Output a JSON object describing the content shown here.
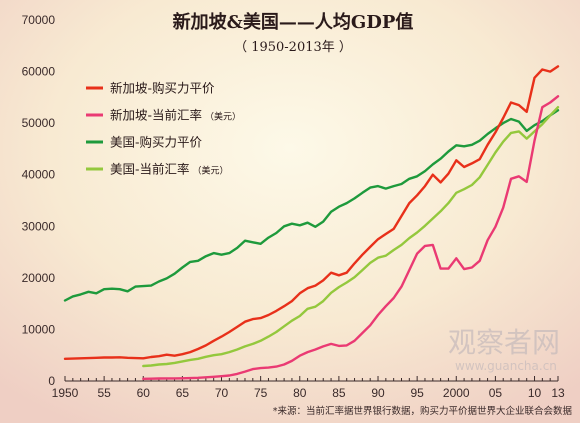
{
  "title": "新加坡&美国——人均GDP值",
  "subtitle": "（ 1950-2013年 ）",
  "source": "*来源：当前汇率据世界银行数据，购买力平价据世界大企业联合会数据",
  "watermark": {
    "logo_text": "观察者网",
    "url": "www.guancha.cn"
  },
  "colors": {
    "sg_ppp": "#e8301a",
    "sg_cur": "#ea3a73",
    "us_ppp": "#1e9a3c",
    "us_cur": "#94c83d"
  },
  "chart_data": {
    "type": "line",
    "title": "新加坡&美国——人均GDP值",
    "subtitle": "（ 1950-2013年 ）",
    "xlabel": "",
    "ylabel": "",
    "xlim": [
      1950,
      2013
    ],
    "ylim": [
      0,
      70000
    ],
    "x_tick_labels": [
      {
        "x": 1950,
        "label": "1950"
      },
      {
        "x": 1955,
        "label": "55"
      },
      {
        "x": 1960,
        "label": "60"
      },
      {
        "x": 1965,
        "label": "65"
      },
      {
        "x": 1970,
        "label": "70"
      },
      {
        "x": 1975,
        "label": "75"
      },
      {
        "x": 1980,
        "label": "80"
      },
      {
        "x": 1985,
        "label": "85"
      },
      {
        "x": 1990,
        "label": "90"
      },
      {
        "x": 1995,
        "label": "95"
      },
      {
        "x": 2000,
        "label": "2000"
      },
      {
        "x": 2005,
        "label": "05"
      },
      {
        "x": 2010,
        "label": "10"
      },
      {
        "x": 2013,
        "label": "13"
      }
    ],
    "y_ticks": [
      0,
      10000,
      20000,
      30000,
      40000,
      50000,
      60000,
      70000
    ],
    "grid": false,
    "legend_position": "top-left",
    "series": [
      {
        "name": "新加坡-购买力平价",
        "color_key": "sg_ppp",
        "x": [
          1950,
          1951,
          1952,
          1953,
          1954,
          1955,
          1956,
          1957,
          1958,
          1959,
          1960,
          1961,
          1962,
          1963,
          1964,
          1965,
          1966,
          1967,
          1968,
          1969,
          1970,
          1971,
          1972,
          1973,
          1974,
          1975,
          1976,
          1977,
          1978,
          1979,
          1980,
          1981,
          1982,
          1983,
          1984,
          1985,
          1986,
          1987,
          1988,
          1989,
          1990,
          1991,
          1992,
          1993,
          1994,
          1995,
          1996,
          1997,
          1998,
          1999,
          2000,
          2001,
          2002,
          2003,
          2004,
          2005,
          2006,
          2007,
          2008,
          2009,
          2010,
          2011,
          2012,
          2013
        ],
        "values": [
          4300,
          4350,
          4400,
          4450,
          4500,
          4550,
          4550,
          4600,
          4500,
          4450,
          4400,
          4650,
          4800,
          5100,
          4900,
          5200,
          5600,
          6200,
          6900,
          7800,
          8600,
          9500,
          10500,
          11500,
          12000,
          12200,
          12800,
          13600,
          14500,
          15500,
          17000,
          18000,
          18500,
          19500,
          21000,
          20500,
          21000,
          22800,
          24500,
          26000,
          27500,
          28500,
          29500,
          32000,
          34500,
          36000,
          37800,
          40000,
          38500,
          40200,
          42800,
          41500,
          42200,
          43000,
          45800,
          48200,
          51000,
          54000,
          53500,
          52200,
          58800,
          60400,
          60000,
          61000
        ]
      },
      {
        "name": "新加坡-当前汇率",
        "legend_note": "（美元）",
        "color_key": "sg_cur",
        "x": [
          1960,
          1961,
          1962,
          1963,
          1964,
          1965,
          1966,
          1967,
          1968,
          1969,
          1970,
          1971,
          1972,
          1973,
          1974,
          1975,
          1976,
          1977,
          1978,
          1979,
          1980,
          1981,
          1982,
          1983,
          1984,
          1985,
          1986,
          1987,
          1988,
          1989,
          1990,
          1991,
          1992,
          1993,
          1994,
          1995,
          1996,
          1997,
          1998,
          1999,
          2000,
          2001,
          2002,
          2003,
          2004,
          2005,
          2006,
          2007,
          2008,
          2009,
          2010,
          2011,
          2012,
          2013
        ],
        "values": [
          430,
          450,
          480,
          510,
          500,
          520,
          570,
          630,
          710,
          820,
          930,
          1070,
          1370,
          1830,
          2300,
          2500,
          2600,
          2800,
          3200,
          3900,
          4900,
          5600,
          6100,
          6700,
          7200,
          6800,
          6900,
          7800,
          9300,
          10800,
          12800,
          14500,
          16100,
          18300,
          21500,
          24700,
          26200,
          26400,
          21800,
          21800,
          23800,
          21700,
          22000,
          23300,
          27300,
          29900,
          33600,
          39200,
          39700,
          38600,
          46600,
          53100,
          54000,
          55200
        ]
      },
      {
        "name": "美国-购买力平价",
        "color_key": "us_ppp",
        "x": [
          1950,
          1951,
          1952,
          1953,
          1954,
          1955,
          1956,
          1957,
          1958,
          1959,
          1960,
          1961,
          1962,
          1963,
          1964,
          1965,
          1966,
          1967,
          1968,
          1969,
          1970,
          1971,
          1972,
          1973,
          1974,
          1975,
          1976,
          1977,
          1978,
          1979,
          1980,
          1981,
          1982,
          1983,
          1984,
          1985,
          1986,
          1987,
          1988,
          1989,
          1990,
          1991,
          1992,
          1993,
          1994,
          1995,
          1996,
          1997,
          1998,
          1999,
          2000,
          2001,
          2002,
          2003,
          2004,
          2005,
          2006,
          2007,
          2008,
          2009,
          2010,
          2011,
          2012,
          2013
        ],
        "values": [
          15600,
          16400,
          16800,
          17300,
          17000,
          17800,
          17900,
          17800,
          17400,
          18300,
          18400,
          18500,
          19300,
          19900,
          20800,
          22000,
          23100,
          23300,
          24200,
          24800,
          24500,
          24800,
          25800,
          27200,
          26900,
          26600,
          27800,
          28700,
          30000,
          30500,
          30200,
          30700,
          29900,
          30900,
          32800,
          33800,
          34500,
          35400,
          36500,
          37500,
          37800,
          37300,
          37800,
          38200,
          39200,
          39700,
          40700,
          42000,
          43100,
          44500,
          45700,
          45500,
          45800,
          46600,
          47900,
          49000,
          50000,
          50800,
          50300,
          48500,
          49600,
          50400,
          51500,
          52500
        ]
      },
      {
        "name": "美国-当前汇率",
        "legend_note": "（美元）",
        "color_key": "us_cur",
        "x": [
          1960,
          1961,
          1962,
          1963,
          1964,
          1965,
          1966,
          1967,
          1968,
          1969,
          1970,
          1971,
          1972,
          1973,
          1974,
          1975,
          1976,
          1977,
          1978,
          1979,
          1980,
          1981,
          1982,
          1983,
          1984,
          1985,
          1986,
          1987,
          1988,
          1989,
          1990,
          1991,
          1992,
          1993,
          1994,
          1995,
          1996,
          1997,
          1998,
          1999,
          2000,
          2001,
          2002,
          2003,
          2004,
          2005,
          2006,
          2007,
          2008,
          2009,
          2010,
          2011,
          2012,
          2013
        ],
        "values": [
          2900,
          3000,
          3200,
          3300,
          3500,
          3800,
          4100,
          4300,
          4700,
          5000,
          5200,
          5600,
          6100,
          6700,
          7200,
          7800,
          8600,
          9500,
          10600,
          11700,
          12600,
          14000,
          14400,
          15500,
          17100,
          18200,
          19100,
          20100,
          21500,
          22900,
          23900,
          24300,
          25400,
          26400,
          27700,
          28800,
          30100,
          31500,
          32900,
          34500,
          36500,
          37200,
          38000,
          39500,
          41900,
          44300,
          46400,
          48100,
          48400,
          47000,
          48400,
          49800,
          51500,
          53100
        ]
      }
    ]
  }
}
